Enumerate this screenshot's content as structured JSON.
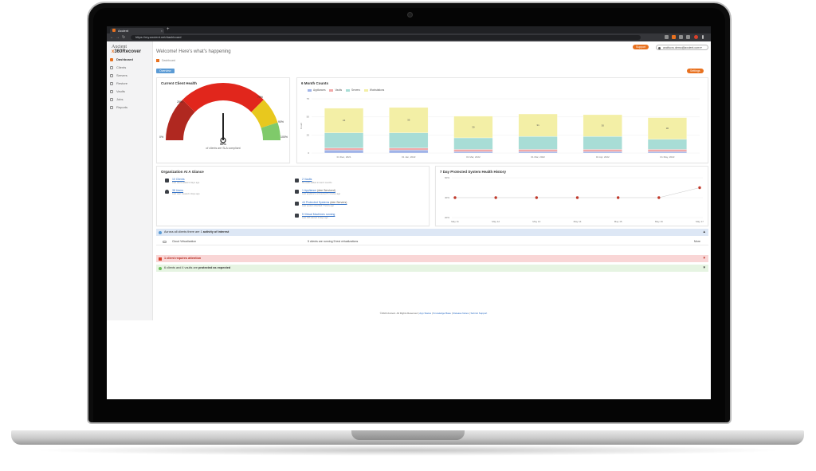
{
  "browser": {
    "tab_title": "Axcient",
    "tab_close": "×",
    "new_tab": "+",
    "url": "https://my.axcient.net/dashboard",
    "nav": {
      "back": "←",
      "forward": "→",
      "reload": "↻"
    }
  },
  "brand": {
    "logo_top": "Axcient",
    "logo_prefix": "x",
    "logo_main": "360Recover",
    "accent_color": "#e8711f"
  },
  "sidebar": {
    "items": [
      {
        "label": "Dashboard",
        "active": true
      },
      {
        "label": "Clients"
      },
      {
        "label": "Servers"
      },
      {
        "label": "Restore"
      },
      {
        "label": "Vaults"
      },
      {
        "label": "Jobs"
      },
      {
        "label": "Reports"
      }
    ]
  },
  "header": {
    "welcome": "Welcome! Here's what's happening",
    "breadcrumb": "Dashboard",
    "support_button": "Support",
    "user_email": "axcifucru.demo@axcient.com ▾",
    "overview_button": "Overview",
    "settings_button": "Settings"
  },
  "client_health": {
    "title": "Current Client Health",
    "percent": "50%",
    "subtitle": "of clients are SLA compliant",
    "tick_labels": [
      "0%",
      "25%",
      "75%",
      "90%",
      "100%"
    ],
    "value": 50,
    "bands": [
      {
        "from": 0,
        "to": 25,
        "color": "#b02820"
      },
      {
        "from": 25,
        "to": 75,
        "color": "#e1261c"
      },
      {
        "from": 75,
        "to": 90,
        "color": "#e8c81e"
      },
      {
        "from": 90,
        "to": 100,
        "color": "#7fca6a"
      }
    ]
  },
  "chart_data": [
    {
      "type": "bar",
      "title": "6 Month Counts",
      "legend": [
        "Appliances",
        "Vaults",
        "Servers",
        "Workstations"
      ],
      "colors": [
        "#9fb3e8",
        "#f2a9a9",
        "#a8ddd6",
        "#f3efa6"
      ],
      "categories": [
        "01 Dec, 2021",
        "01 Jan, 2022",
        "01 Mar, 2022",
        "01 Mar, 2022",
        "01 Apr, 2022",
        "01 May, 2022"
      ],
      "series": [
        {
          "name": "Appliances",
          "values": [
            4,
            4,
            2,
            2,
            2,
            2
          ]
        },
        {
          "name": "Vaults",
          "values": [
            3,
            3,
            3,
            3,
            3,
            3
          ]
        },
        {
          "name": "Servers",
          "values": [
            21,
            21,
            16,
            18,
            18,
            14
          ]
        },
        {
          "name": "Workstations",
          "values": [
            34,
            35,
            30,
            31,
            30,
            30
          ]
        }
      ],
      "data_labels": [
        "34",
        "35",
        "30",
        "31",
        "30",
        "30"
      ],
      "y_ticks": [
        "75",
        "50",
        "25",
        "0"
      ],
      "ylim": [
        0,
        75
      ],
      "ylabel": "Count"
    },
    {
      "type": "line",
      "title": "7 Day Protected System Health History",
      "x": [
        "May 11",
        "May 12",
        "May 13",
        "May 14",
        "May 15",
        "May 16",
        "May 17"
      ],
      "values": [
        40,
        40,
        40,
        40,
        40,
        40,
        50
      ],
      "y_ticks": [
        "60%",
        "40%",
        "20%"
      ],
      "ylim": [
        20,
        60
      ],
      "color": "#c0392b"
    }
  ],
  "glance": {
    "title": "Organization At A Glance",
    "items": [
      {
        "link": "10 Clients",
        "sub": "Last client added 2 days ago"
      },
      {
        "link": "38 Users",
        "sub": "Last user created 4 days ago"
      },
      {
        "link": "2 Vaults",
        "sub": "No vault added in last 6 months"
      },
      {
        "link": "1 Appliance",
        "extra": "(dee Serviced)",
        "sub": "Last appliance connected 5 minutes ago"
      },
      {
        "link": "44 Protected Systems",
        "extra": "(dee Servers)",
        "sub": "Last system checked 7 hours ago"
      },
      {
        "link": "5 Virtual Machines running",
        "sub": "Last VM started 3 days ago"
      }
    ]
  },
  "banners": {
    "info_prefix": "Across all clients there are 1 ",
    "info_bold": "activity of interest",
    "row_label": "Cloud Virtualization",
    "row_detail": "5 clients are running 5 test virtualizations",
    "row_action": "More",
    "alert_text": "1 client requires attention",
    "ok_prefix": "6 clients and 4 vaults are ",
    "ok_bold": "protected as expected"
  },
  "footer": {
    "copyright": "©2022 Axcient. All Rights Reserved | ",
    "links": [
      "App Status",
      "Knowledge Base",
      "Release Notes",
      "Submit Support"
    ]
  }
}
